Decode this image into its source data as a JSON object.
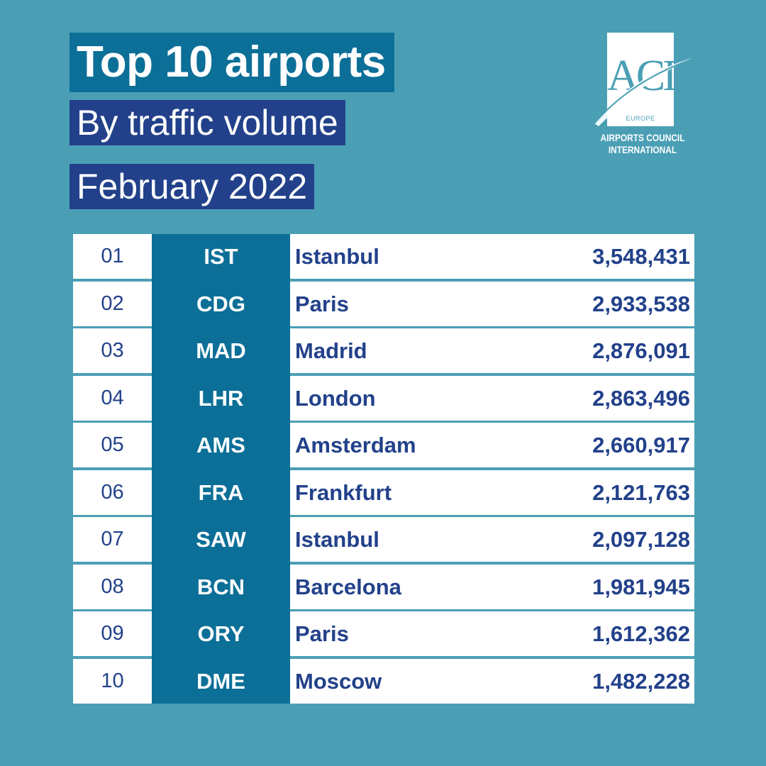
{
  "header": {
    "title": "Top 10 airports",
    "subtitle": "By traffic volume",
    "period": "February 2022"
  },
  "logo": {
    "letters": "ACI",
    "region": "EUROPE",
    "org_line1": "AIRPORTS COUNCIL",
    "org_line2": "INTERNATIONAL"
  },
  "colors": {
    "background": "#4a9fb5",
    "accent_teal": "#0c6f98",
    "accent_navy": "#22418a",
    "text_navy": "#22418a"
  },
  "rows": [
    {
      "rank": "01",
      "code": "IST",
      "city": "Istanbul",
      "passengers": "3,548,431"
    },
    {
      "rank": "02",
      "code": "CDG",
      "city": "Paris",
      "passengers": "2,933,538"
    },
    {
      "rank": "03",
      "code": "MAD",
      "city": "Madrid",
      "passengers": "2,876,091"
    },
    {
      "rank": "04",
      "code": "LHR",
      "city": "London",
      "passengers": "2,863,496"
    },
    {
      "rank": "05",
      "code": "AMS",
      "city": "Amsterdam",
      "passengers": "2,660,917"
    },
    {
      "rank": "06",
      "code": "FRA",
      "city": "Frankfurt",
      "passengers": "2,121,763"
    },
    {
      "rank": "07",
      "code": "SAW",
      "city": "Istanbul",
      "passengers": "2,097,128"
    },
    {
      "rank": "08",
      "code": "BCN",
      "city": "Barcelona",
      "passengers": "1,981,945"
    },
    {
      "rank": "09",
      "code": "ORY",
      "city": "Paris",
      "passengers": "1,612,362"
    },
    {
      "rank": "10",
      "code": "DME",
      "city": "Moscow",
      "passengers": "1,482,228"
    }
  ]
}
